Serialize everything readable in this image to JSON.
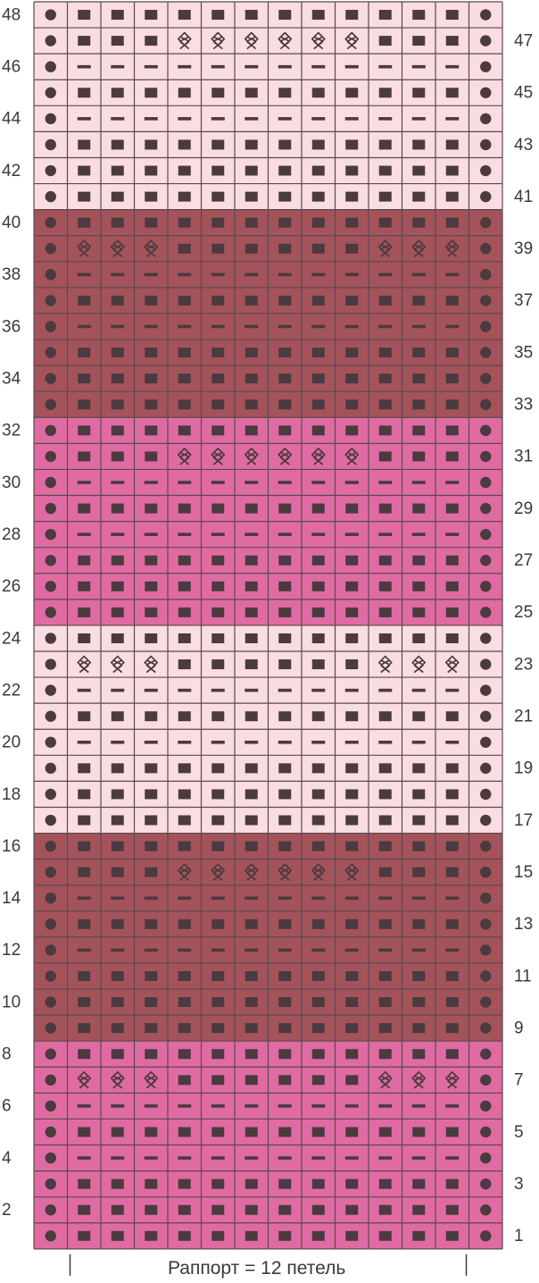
{
  "chart": {
    "row_count": 48,
    "stitch_count": 14,
    "colors": {
      "pale": "#f9dde1",
      "dark": "#a4535b",
      "pink": "#e06ba3",
      "symbol": "#4b3a3f",
      "grid": "#5a4a4f",
      "text": "#3a3a3a"
    },
    "color_bands": [
      {
        "rows": [
          1,
          8
        ],
        "color": "pink"
      },
      {
        "rows": [
          9,
          16
        ],
        "color": "dark"
      },
      {
        "rows": [
          17,
          24
        ],
        "color": "pale"
      },
      {
        "rows": [
          25,
          32
        ],
        "color": "pink"
      },
      {
        "rows": [
          33,
          40
        ],
        "color": "dark"
      },
      {
        "rows": [
          41,
          48
        ],
        "color": "pale"
      }
    ],
    "symbols": {
      "dot": "edge stitch",
      "square": "knit",
      "dash": "purl",
      "loop": "slip stitch"
    },
    "row_patterns": {
      "knit": [
        "dot",
        "square",
        "square",
        "square",
        "square",
        "square",
        "square",
        "square",
        "square",
        "square",
        "square",
        "square",
        "square",
        "dot"
      ],
      "purl": [
        "dot",
        "dash",
        "dash",
        "dash",
        "dash",
        "dash",
        "dash",
        "dash",
        "dash",
        "dash",
        "dash",
        "dash",
        "dash",
        "dot"
      ],
      "slip_middle": [
        "dot",
        "square",
        "square",
        "square",
        "loop",
        "loop",
        "loop",
        "loop",
        "loop",
        "loop",
        "square",
        "square",
        "square",
        "dot"
      ],
      "slip_sides": [
        "dot",
        "loop",
        "loop",
        "loop",
        "square",
        "square",
        "square",
        "square",
        "square",
        "square",
        "loop",
        "loop",
        "loop",
        "dot"
      ]
    },
    "band_row_sequence": [
      "knit",
      "knit",
      "knit",
      "purl",
      "knit",
      "purl",
      "slip_a",
      "knit"
    ],
    "band_slip_type": [
      "slip_sides",
      "slip_middle",
      "slip_sides",
      "slip_middle",
      "slip_sides",
      "slip_middle"
    ],
    "row_numbers_left": [
      2,
      4,
      6,
      8,
      10,
      12,
      14,
      16,
      18,
      20,
      22,
      24,
      26,
      28,
      30,
      32,
      34,
      36,
      38,
      40,
      42,
      44,
      46,
      48
    ],
    "row_numbers_right": [
      1,
      3,
      5,
      7,
      9,
      11,
      13,
      15,
      17,
      19,
      21,
      23,
      25,
      27,
      29,
      31,
      33,
      35,
      37,
      39,
      41,
      43,
      45,
      47
    ],
    "caption": "Раппорт = 12 петель"
  }
}
